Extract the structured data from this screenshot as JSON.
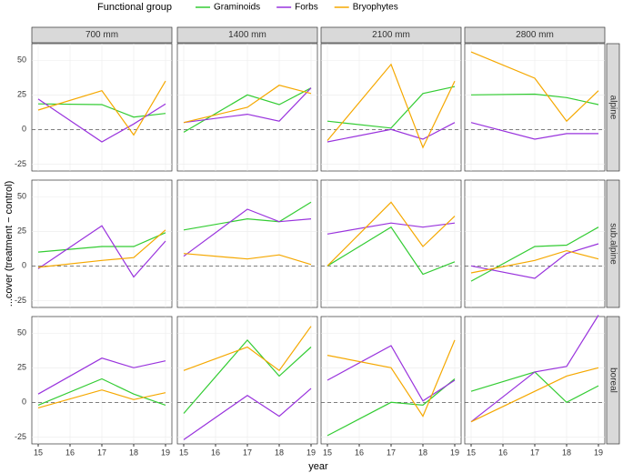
{
  "chart_data": {
    "type": "line",
    "legend_title": "Functional group",
    "series": [
      {
        "name": "Graminoids",
        "color": "#33cc33"
      },
      {
        "name": "Forbs",
        "color": "#9933dd"
      },
      {
        "name": "Bryophytes",
        "color": "#f5a800"
      }
    ],
    "columns": [
      "700 mm",
      "1400 mm",
      "2100 mm",
      "2800 mm"
    ],
    "xlabel": "year",
    "ylabel": "...cover (treatment − control)",
    "x": [
      15,
      17,
      18,
      19
    ],
    "xlim": [
      14.8,
      19.2
    ],
    "xticks": [
      15,
      16,
      17,
      18,
      19
    ],
    "ylim": [
      -30,
      62
    ],
    "yticks": [
      -25,
      0,
      25,
      50
    ],
    "hline": 0,
    "grid": true,
    "rows": [
      {
        "label": "alpine",
        "panels": [
          {
            "series": [
              {
                "values": [
                  18.5,
                  18,
                  9,
                  11.6
                ]
              },
              {
                "values": [
                  22,
                  -9,
                  4,
                  18.5
                ]
              },
              {
                "values": [
                  14,
                  28,
                  -4,
                  35
                ]
              }
            ]
          },
          {
            "series": [
              {
                "values": [
                  -2,
                  25,
                  18,
                  30
                ]
              },
              {
                "values": [
                  5,
                  11,
                  6,
                  30
                ]
              },
              {
                "values": [
                  5,
                  16,
                  32,
                  26
                ]
              }
            ]
          },
          {
            "series": [
              {
                "values": [
                  6,
                  1,
                  26,
                  31
                ]
              },
              {
                "values": [
                  -9,
                  0,
                  -7,
                  5
                ]
              },
              {
                "values": [
                  -8,
                  47,
                  -13,
                  35
                ]
              }
            ]
          },
          {
            "series": [
              {
                "values": [
                  25,
                  25.5,
                  23,
                  18
                ]
              },
              {
                "values": [
                  5,
                  -7,
                  -3,
                  -3
                ]
              },
              {
                "values": [
                  56,
                  37,
                  6,
                  28
                ]
              }
            ]
          }
        ]
      },
      {
        "label": "sub.alpine",
        "panels": [
          {
            "series": [
              {
                "values": [
                  10,
                  14,
                  14,
                  24
                ]
              },
              {
                "values": [
                  -2,
                  29,
                  -8,
                  18
                ]
              },
              {
                "values": [
                  -1,
                  4,
                  6,
                  26
                ]
              }
            ]
          },
          {
            "series": [
              {
                "values": [
                  26,
                  34,
                  32,
                  46
                ]
              },
              {
                "values": [
                  7,
                  41,
                  32,
                  34
                ]
              },
              {
                "values": [
                  9,
                  5,
                  8,
                  1
                ]
              }
            ]
          },
          {
            "series": [
              {
                "values": [
                  0,
                  28,
                  -6,
                  3
                ]
              },
              {
                "values": [
                  23,
                  31,
                  28,
                  31
                ]
              },
              {
                "values": [
                  0,
                  46,
                  14,
                  36
                ]
              }
            ]
          },
          {
            "series": [
              {
                "values": [
                  -11,
                  14,
                  15,
                  28
                ]
              },
              {
                "values": [
                  0,
                  -9,
                  9,
                  16
                ]
              },
              {
                "values": [
                  -5,
                  4,
                  11,
                  5
                ]
              }
            ]
          }
        ]
      },
      {
        "label": "boreal",
        "panels": [
          {
            "series": [
              {
                "values": [
                  -2,
                  17,
                  6,
                  -2
                ]
              },
              {
                "values": [
                  6,
                  32,
                  25,
                  30
                ]
              },
              {
                "values": [
                  -4,
                  9,
                  2,
                  7
                ]
              }
            ]
          },
          {
            "series": [
              {
                "values": [
                  -8,
                  45,
                  19,
                  40
                ]
              },
              {
                "values": [
                  -27,
                  5,
                  -10,
                  10
                ]
              },
              {
                "values": [
                  23,
                  40,
                  23,
                  55
                ]
              }
            ]
          },
          {
            "series": [
              {
                "values": [
                  -24,
                  0,
                  -2,
                  17
                ]
              },
              {
                "values": [
                  16,
                  41,
                  1,
                  16
                ]
              },
              {
                "values": [
                  34,
                  25,
                  -10,
                  45
                ]
              }
            ]
          },
          {
            "series": [
              {
                "values": [
                  8,
                  22,
                  0,
                  12
                ]
              },
              {
                "values": [
                  -14,
                  22,
                  26,
                  63
                ]
              },
              {
                "values": [
                  -14,
                  8,
                  19,
                  25
                ]
              }
            ]
          }
        ]
      }
    ]
  }
}
